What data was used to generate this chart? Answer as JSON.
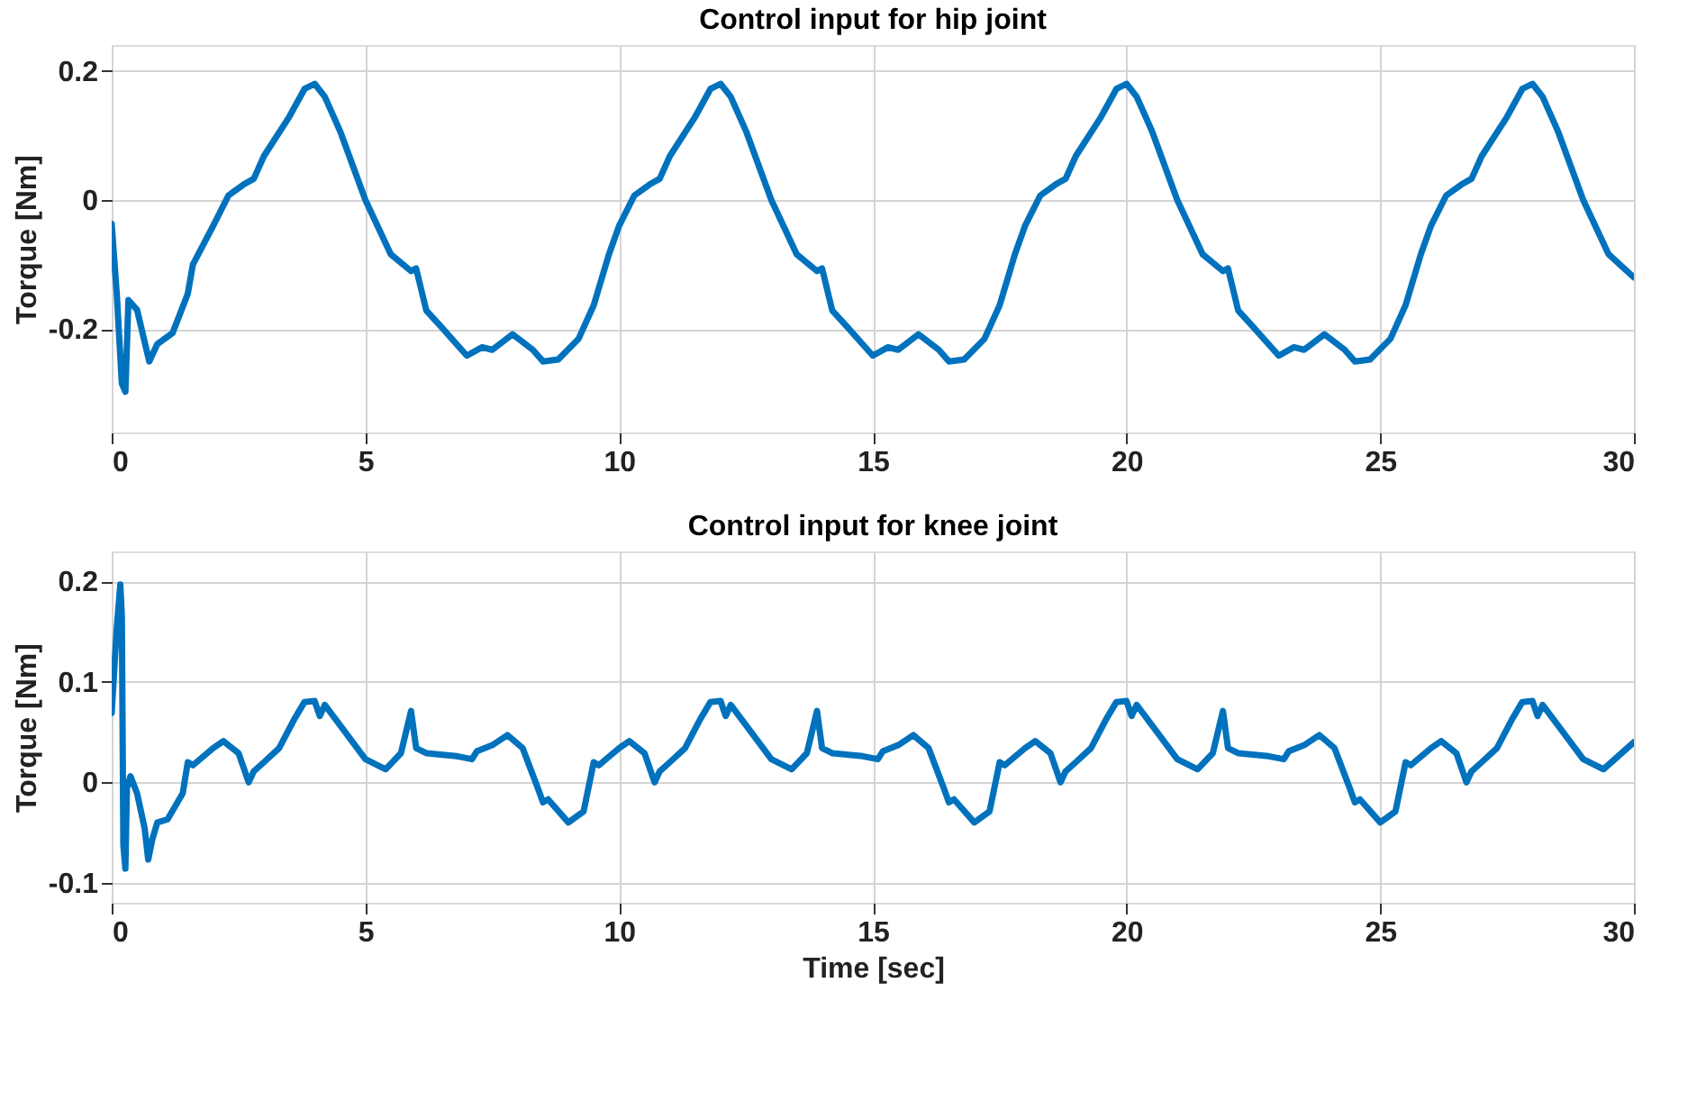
{
  "chart_data": [
    {
      "type": "line",
      "title": "Control input for hip joint",
      "ylabel": "Torque [Nm]",
      "xlim": [
        0,
        30
      ],
      "xticks": [
        0,
        5,
        10,
        15,
        20,
        25,
        30
      ],
      "ylim": [
        -0.36,
        0.24
      ],
      "yticks": [
        -0.2,
        0,
        0.2
      ],
      "grid": true,
      "marker": "none",
      "line_style": "solid",
      "series": [
        {
          "color": "#0072bd",
          "x": [
            0,
            0.1,
            0.2,
            0.27,
            0.33,
            0.5,
            0.74,
            0.9,
            1.2,
            1.5,
            1.6,
            2,
            2.3,
            2.6,
            2.8,
            3,
            3.5,
            3.8,
            4,
            4.2,
            4.5,
            5,
            5.5,
            5.9,
            6,
            6.2,
            6.5,
            7,
            7.3,
            7.5,
            7.9,
            8.3,
            8.5,
            8.8,
            9.2,
            9.5,
            9.8,
            10,
            10.3,
            10.6,
            10.8,
            11,
            11.5,
            11.8,
            12,
            12.2,
            12.5,
            13,
            13.5,
            13.9,
            14,
            14.2,
            14.5,
            15,
            15.3,
            15.5,
            15.9,
            16.3,
            16.5,
            16.8,
            17.2,
            17.5,
            17.8,
            18,
            18.3,
            18.6,
            18.8,
            19,
            19.5,
            19.8,
            20,
            20.2,
            20.5,
            21,
            21.5,
            21.9,
            22,
            22.2,
            22.5,
            23,
            23.3,
            23.5,
            23.9,
            24.3,
            24.5,
            24.8,
            25.2,
            25.5,
            25.8,
            26,
            26.3,
            26.6,
            26.8,
            27,
            27.5,
            27.8,
            28,
            28.2,
            28.5,
            29,
            29.5,
            30
          ],
          "values": [
            -0.037,
            -0.145,
            -0.284,
            -0.297,
            -0.155,
            -0.17,
            -0.25,
            -0.223,
            -0.206,
            -0.145,
            -0.1,
            -0.04,
            0.007,
            0.024,
            0.033,
            0.068,
            0.129,
            0.172,
            0.18,
            0.16,
            0.107,
            0,
            -0.084,
            -0.11,
            -0.106,
            -0.171,
            -0.197,
            -0.241,
            -0.228,
            -0.232,
            -0.208,
            -0.232,
            -0.25,
            -0.247,
            -0.215,
            -0.163,
            -0.084,
            -0.04,
            0.007,
            0.024,
            0.033,
            0.068,
            0.129,
            0.172,
            0.18,
            0.16,
            0.107,
            0,
            -0.084,
            -0.11,
            -0.106,
            -0.171,
            -0.197,
            -0.241,
            -0.228,
            -0.232,
            -0.208,
            -0.232,
            -0.25,
            -0.247,
            -0.215,
            -0.163,
            -0.084,
            -0.04,
            0.007,
            0.024,
            0.033,
            0.068,
            0.129,
            0.172,
            0.18,
            0.16,
            0.107,
            0,
            -0.084,
            -0.11,
            -0.106,
            -0.171,
            -0.197,
            -0.241,
            -0.228,
            -0.232,
            -0.208,
            -0.232,
            -0.25,
            -0.247,
            -0.215,
            -0.163,
            -0.084,
            -0.04,
            0.007,
            0.024,
            0.033,
            0.068,
            0.129,
            0.172,
            0.18,
            0.16,
            0.107,
            0,
            -0.084,
            -0.12
          ]
        }
      ]
    },
    {
      "type": "line",
      "title": "Control input for knee joint",
      "xlabel": "Time [sec]",
      "ylabel": "Torque [Nm]",
      "xlim": [
        0,
        30
      ],
      "xticks": [
        0,
        5,
        10,
        15,
        20,
        25,
        30
      ],
      "ylim": [
        -0.12,
        0.23
      ],
      "yticks": [
        -0.1,
        0,
        0.1,
        0.2
      ],
      "grid": true,
      "marker": "none",
      "line_style": "solid",
      "series": [
        {
          "color": "#0072bd",
          "x": [
            0,
            0.1,
            0.17,
            0.2,
            0.23,
            0.27,
            0.3,
            0.37,
            0.5,
            0.65,
            0.72,
            0.8,
            0.9,
            1.1,
            1.4,
            1.5,
            1.6,
            2,
            2.2,
            2.5,
            2.7,
            2.8,
            3,
            3.3,
            3.6,
            3.8,
            4,
            4.1,
            4.2,
            4.5,
            5,
            5.4,
            5.7,
            5.9,
            6,
            6.2,
            6.8,
            7.1,
            7.2,
            7.5,
            7.8,
            8.1,
            8.4,
            8.5,
            8.6,
            9,
            9.3,
            9.5,
            9.6,
            10,
            10.2,
            10.5,
            10.7,
            10.8,
            11,
            11.3,
            11.6,
            11.8,
            12,
            12.1,
            12.2,
            12.5,
            13,
            13.4,
            13.7,
            13.9,
            14,
            14.2,
            14.8,
            15.1,
            15.2,
            15.5,
            15.8,
            16.1,
            16.4,
            16.5,
            16.6,
            17,
            17.3,
            17.5,
            17.6,
            18,
            18.2,
            18.5,
            18.7,
            18.8,
            19,
            19.3,
            19.6,
            19.8,
            20,
            20.1,
            20.2,
            20.5,
            21,
            21.4,
            21.7,
            21.9,
            22,
            22.2,
            22.8,
            23.1,
            23.2,
            23.5,
            23.8,
            24.1,
            24.4,
            24.5,
            24.6,
            25,
            25.3,
            25.5,
            25.6,
            26,
            26.2,
            26.5,
            26.7,
            26.8,
            27,
            27.3,
            27.6,
            27.8,
            28,
            28.1,
            28.2,
            28.5,
            29,
            29.4,
            30
          ],
          "values": [
            0.069,
            0.154,
            0.197,
            0.166,
            -0.063,
            -0.086,
            -0.006,
            0.006,
            -0.011,
            -0.046,
            -0.077,
            -0.057,
            -0.04,
            -0.037,
            -0.011,
            0.02,
            0.017,
            0.034,
            0.041,
            0.029,
            0,
            0.011,
            0.02,
            0.034,
            0.063,
            0.08,
            0.081,
            0.066,
            0.077,
            0.057,
            0.023,
            0.013,
            0.029,
            0.071,
            0.034,
            0.029,
            0.026,
            0.023,
            0.031,
            0.037,
            0.047,
            0.034,
            -0.006,
            -0.02,
            -0.017,
            -0.04,
            -0.029,
            0.02,
            0.017,
            0.034,
            0.041,
            0.029,
            0,
            0.011,
            0.02,
            0.034,
            0.063,
            0.08,
            0.081,
            0.066,
            0.077,
            0.057,
            0.023,
            0.013,
            0.029,
            0.071,
            0.034,
            0.029,
            0.026,
            0.023,
            0.031,
            0.037,
            0.047,
            0.034,
            -0.006,
            -0.02,
            -0.017,
            -0.04,
            -0.029,
            0.02,
            0.017,
            0.034,
            0.041,
            0.029,
            0,
            0.011,
            0.02,
            0.034,
            0.063,
            0.08,
            0.081,
            0.066,
            0.077,
            0.057,
            0.023,
            0.013,
            0.029,
            0.071,
            0.034,
            0.029,
            0.026,
            0.023,
            0.031,
            0.037,
            0.047,
            0.034,
            -0.006,
            -0.02,
            -0.017,
            -0.04,
            -0.029,
            0.02,
            0.017,
            0.034,
            0.041,
            0.029,
            0,
            0.011,
            0.02,
            0.034,
            0.063,
            0.08,
            0.081,
            0.066,
            0.077,
            0.057,
            0.023,
            0.013,
            0.04
          ]
        }
      ]
    }
  ]
}
